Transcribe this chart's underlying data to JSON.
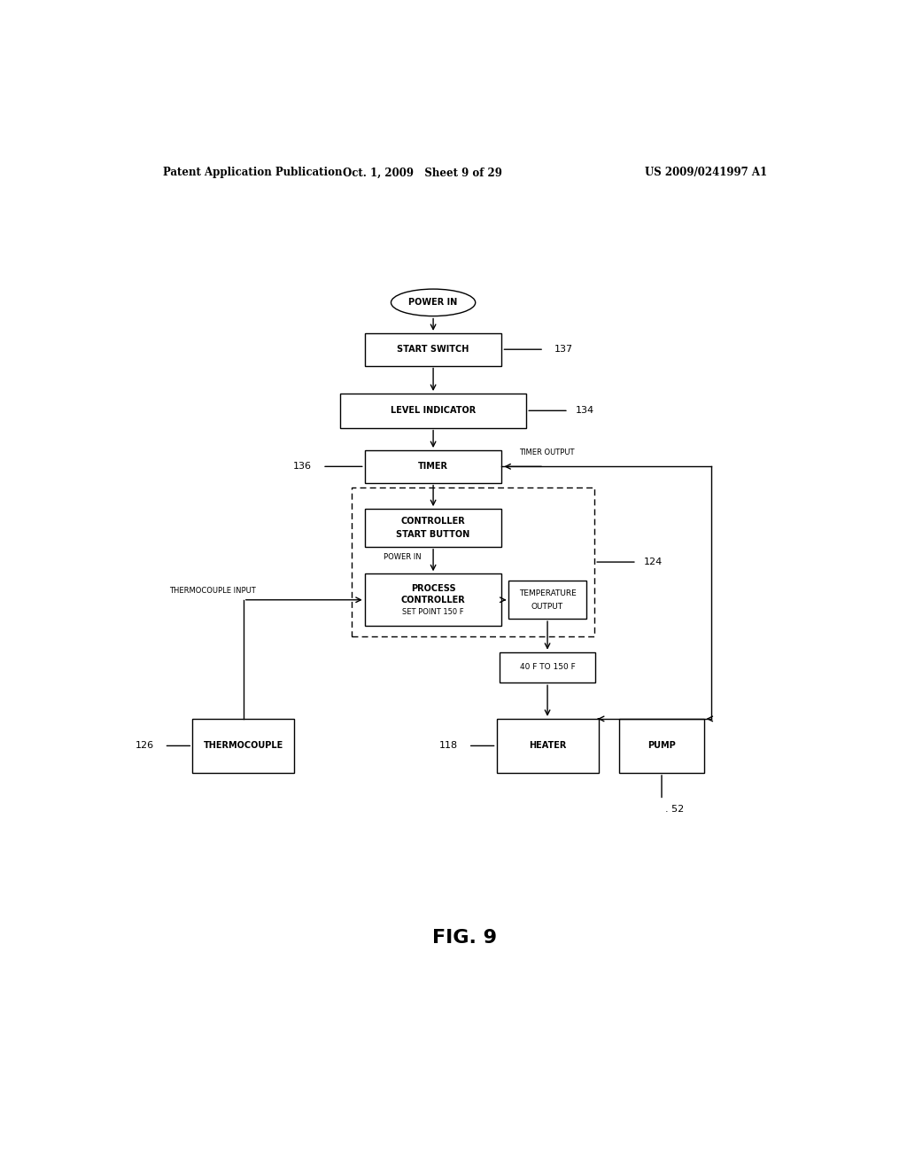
{
  "header_left": "Patent Application Publication",
  "header_center": "Oct. 1, 2009   Sheet 9 of 29",
  "header_right": "US 2009/0241997 A1",
  "figure_label": "FIG. 9",
  "bg_color": "#ffffff"
}
